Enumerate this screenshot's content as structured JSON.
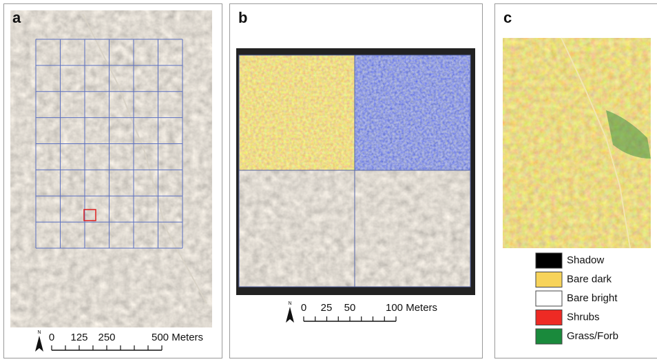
{
  "panels": [
    {
      "label": "a",
      "scale_bar": {
        "north": "N",
        "labels": [
          "0",
          "125",
          "250",
          "500 Meters"
        ]
      }
    },
    {
      "label": "b",
      "scale_bar": {
        "north": "N",
        "labels": [
          "0",
          "25",
          "50",
          "100 Meters"
        ]
      }
    },
    {
      "label": "c"
    }
  ],
  "legend": [
    {
      "label": "Shadow",
      "color": "#000000"
    },
    {
      "label": "Bare dark",
      "color": "#f7d35a"
    },
    {
      "label": "Bare bright",
      "color": "#ffffff"
    },
    {
      "label": "Shrubs",
      "color": "#ee2a24"
    },
    {
      "label": "Grass/Forb",
      "color": "#1a8a3c"
    }
  ]
}
